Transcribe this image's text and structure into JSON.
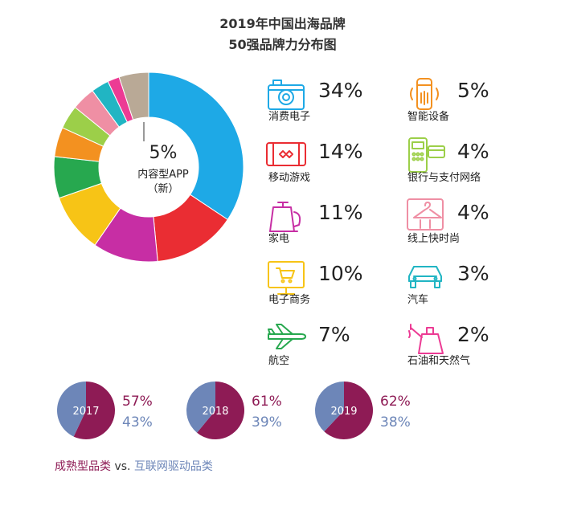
{
  "title_line1": "2019年中国出海品牌",
  "title_line2": "50强品牌力分布图",
  "center": {
    "pct": "5%",
    "label1": "内容型APP",
    "label2": "（新）"
  },
  "chart_data": [
    {
      "type": "pie",
      "donut": true,
      "categories": [
        "消费电子",
        "移动游戏",
        "家电",
        "电子商务",
        "航空",
        "智能设备",
        "银行与支付网络",
        "线上快时尚",
        "汽车",
        "石油和天然气",
        "内容型APP"
      ],
      "values": [
        34,
        14,
        11,
        10,
        7,
        5,
        4,
        4,
        3,
        2,
        5
      ],
      "value_labels": [
        "34%",
        "14%",
        "11%",
        "10%",
        "7%",
        "5%",
        "4%",
        "4%",
        "3%",
        "2%",
        "5%"
      ],
      "colors": [
        "#1ea9e6",
        "#ea2d33",
        "#c72ea4",
        "#f7c416",
        "#27a84f",
        "#f39120",
        "#9ccf49",
        "#ef8fa4",
        "#21b5c3",
        "#ec3b94",
        "#b9a996"
      ]
    },
    {
      "type": "pie",
      "title": "2017",
      "categories": [
        "成熟型品类",
        "互联网驱动品类"
      ],
      "values": [
        57,
        43
      ],
      "value_labels": [
        "57%",
        "43%"
      ],
      "colors": [
        "#8e1b55",
        "#6d86b8"
      ]
    },
    {
      "type": "pie",
      "title": "2018",
      "categories": [
        "成熟型品类",
        "互联网驱动品类"
      ],
      "values": [
        61,
        39
      ],
      "value_labels": [
        "61%",
        "39%"
      ],
      "colors": [
        "#8e1b55",
        "#6d86b8"
      ]
    },
    {
      "type": "pie",
      "title": "2019",
      "categories": [
        "成熟型品类",
        "互联网驱动品类"
      ],
      "values": [
        62,
        38
      ],
      "value_labels": [
        "62%",
        "38%"
      ],
      "colors": [
        "#8e1b55",
        "#6d86b8"
      ]
    }
  ],
  "categories": [
    {
      "label": "消费电子",
      "pct": "34%",
      "icon": "camera-icon",
      "color": "#1ea9e6"
    },
    {
      "label": "移动游戏",
      "pct": "14%",
      "icon": "game-phone-icon",
      "color": "#ea2d33"
    },
    {
      "label": "家电",
      "pct": "11%",
      "icon": "kettle-icon",
      "color": "#c72ea4"
    },
    {
      "label": "电子商务",
      "pct": "10%",
      "icon": "shopping-cart-screen-icon",
      "color": "#f7c416"
    },
    {
      "label": "航空",
      "pct": "7%",
      "icon": "airplane-icon",
      "color": "#27a84f"
    },
    {
      "label": "智能设备",
      "pct": "5%",
      "icon": "smart-speaker-icon",
      "color": "#f39120"
    },
    {
      "label": "银行与支付网络",
      "pct": "4%",
      "icon": "pos-terminal-icon",
      "color": "#9ccf49"
    },
    {
      "label": "线上快时尚",
      "pct": "4%",
      "icon": "hanger-icon",
      "color": "#ef8fa4"
    },
    {
      "label": "汽车",
      "pct": "3%",
      "icon": "car-icon",
      "color": "#21b5c3"
    },
    {
      "label": "石油和天然气",
      "pct": "2%",
      "icon": "oil-can-icon",
      "color": "#ec3b94"
    }
  ],
  "legend": {
    "mature": "成熟型品类",
    "vs": " vs. ",
    "internet": "互联网驱动品类"
  },
  "colors": {
    "mature": "#8e1b55",
    "internet": "#6d86b8"
  }
}
